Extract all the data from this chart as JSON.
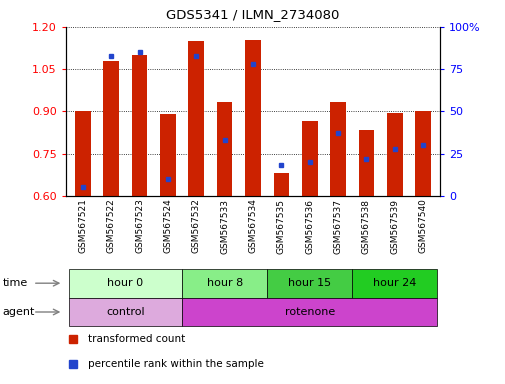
{
  "title": "GDS5341 / ILMN_2734080",
  "samples": [
    "GSM567521",
    "GSM567522",
    "GSM567523",
    "GSM567524",
    "GSM567532",
    "GSM567533",
    "GSM567534",
    "GSM567535",
    "GSM567536",
    "GSM567537",
    "GSM567538",
    "GSM567539",
    "GSM567540"
  ],
  "transformed_count": [
    0.9,
    1.08,
    1.1,
    0.89,
    1.15,
    0.935,
    1.155,
    0.68,
    0.865,
    0.935,
    0.835,
    0.895,
    0.9
  ],
  "percentile_rank": [
    5,
    83,
    85,
    10,
    83,
    33,
    78,
    18,
    20,
    37,
    22,
    28,
    30
  ],
  "bar_bottom": 0.6,
  "ylim_left": [
    0.6,
    1.2
  ],
  "ylim_right": [
    0,
    100
  ],
  "yticks_left": [
    0.6,
    0.75,
    0.9,
    1.05,
    1.2
  ],
  "yticks_right": [
    0,
    25,
    50,
    75,
    100
  ],
  "bar_color": "#cc2200",
  "dot_color": "#2244cc",
  "time_groups": [
    {
      "label": "hour 0",
      "start": 0,
      "end": 4,
      "color": "#ccffcc"
    },
    {
      "label": "hour 8",
      "start": 4,
      "end": 7,
      "color": "#88ee88"
    },
    {
      "label": "hour 15",
      "start": 7,
      "end": 10,
      "color": "#44cc44"
    },
    {
      "label": "hour 24",
      "start": 10,
      "end": 13,
      "color": "#22cc22"
    }
  ],
  "agent_groups": [
    {
      "label": "control",
      "start": 0,
      "end": 4,
      "color": "#ddaadd"
    },
    {
      "label": "rotenone",
      "start": 4,
      "end": 13,
      "color": "#cc44cc"
    }
  ],
  "legend_items": [
    {
      "color": "#cc2200",
      "label": "transformed count"
    },
    {
      "color": "#2244cc",
      "label": "percentile rank within the sample"
    }
  ]
}
